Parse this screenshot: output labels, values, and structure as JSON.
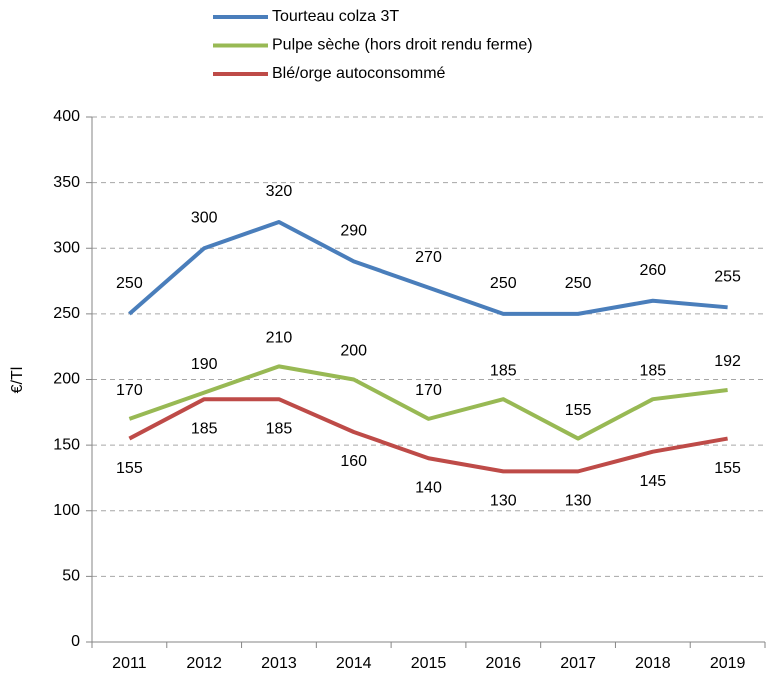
{
  "chart_data": {
    "type": "line",
    "categories": [
      "2011",
      "2012",
      "2013",
      "2014",
      "2015",
      "2016",
      "2017",
      "2018",
      "2019"
    ],
    "series": [
      {
        "name": "Tourteau colza 3T",
        "color": "#4a7ebb",
        "values": [
          250,
          300,
          320,
          290,
          270,
          250,
          250,
          260,
          255
        ]
      },
      {
        "name": "Pulpe sèche (hors droit rendu ferme)",
        "color": "#98b954",
        "values": [
          170,
          190,
          210,
          200,
          170,
          185,
          155,
          185,
          192
        ]
      },
      {
        "name": "Blé/orge autoconsommé",
        "color": "#be4b48",
        "values": [
          155,
          185,
          185,
          160,
          140,
          130,
          130,
          145,
          155
        ]
      }
    ],
    "y_label": "€/Tl",
    "ylim": [
      0,
      400
    ],
    "yticks": [
      0,
      50,
      100,
      150,
      200,
      250,
      300,
      350,
      400
    ],
    "grid": true,
    "legend": "top"
  }
}
